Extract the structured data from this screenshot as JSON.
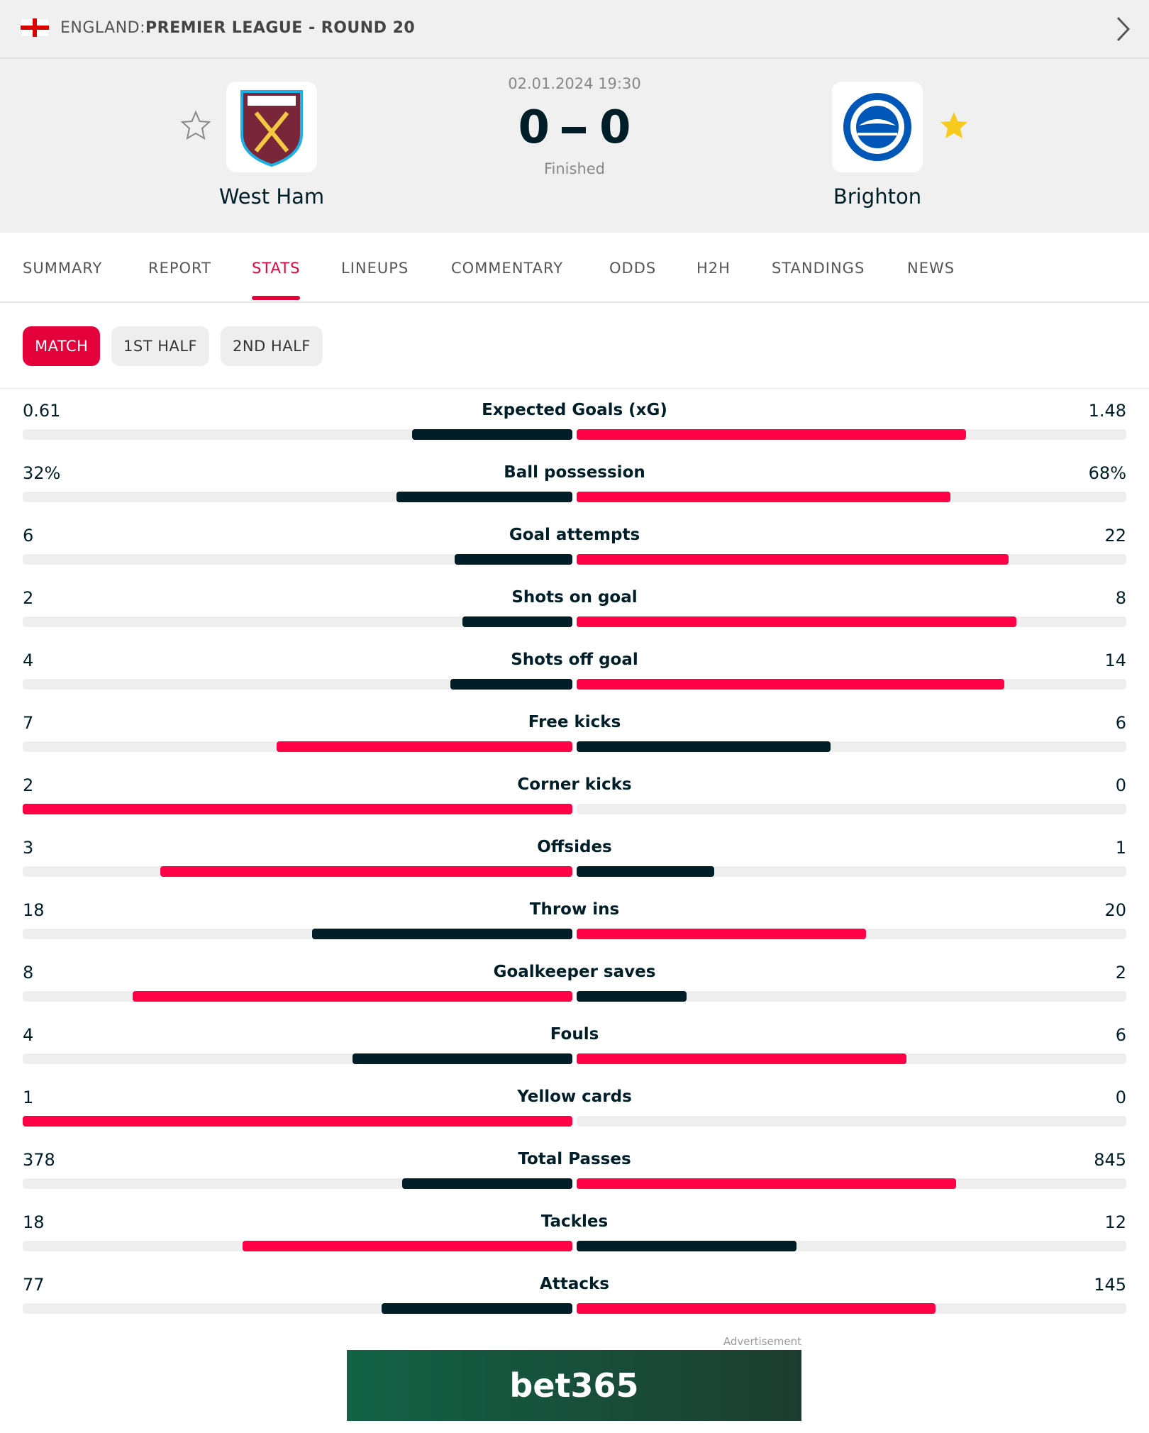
{
  "header": {
    "country": "ENGLAND:",
    "league": "PREMIER LEAGUE - ROUND 20"
  },
  "match": {
    "datetime": "02.01.2024 19:30",
    "home": "West Ham",
    "away": "Brighton",
    "score": {
      "home": 0,
      "away": 0
    },
    "status": "Finished"
  },
  "tabs": [
    "SUMMARY",
    "REPORT",
    "STATS",
    "LINEUPS",
    "COMMENTARY",
    "ODDS",
    "H2H",
    "STANDINGS",
    "NEWS"
  ],
  "periods": [
    "MATCH",
    "1ST HALF",
    "2ND HALF"
  ],
  "stats": [
    {
      "name": "Expected Goals (xG)",
      "home": 0.61,
      "away": 1.48
    },
    {
      "name": "Ball possession",
      "home": 32,
      "away": 68,
      "home_label": "32%",
      "away_label": "68%"
    },
    {
      "name": "Goal attempts",
      "home": 6,
      "away": 22
    },
    {
      "name": "Shots on goal",
      "home": 2,
      "away": 8
    },
    {
      "name": "Shots off goal",
      "home": 4,
      "away": 14
    },
    {
      "name": "Free kicks",
      "home": 7,
      "away": 6
    },
    {
      "name": "Corner kicks",
      "home": 2,
      "away": 0
    },
    {
      "name": "Offsides",
      "home": 3,
      "away": 1
    },
    {
      "name": "Throw ins",
      "home": 18,
      "away": 20
    },
    {
      "name": "Goalkeeper saves",
      "home": 8,
      "away": 2
    },
    {
      "name": "Fouls",
      "home": 4,
      "away": 6
    },
    {
      "name": "Yellow cards",
      "home": 1,
      "away": 0
    },
    {
      "name": "Total Passes",
      "home": 378,
      "away": 845
    },
    {
      "name": "Tackles",
      "home": 18,
      "away": 12
    },
    {
      "name": "Attacks",
      "home": 77,
      "away": 145
    }
  ],
  "ad": {
    "caption": "Advertisement",
    "brand": "bet365"
  }
}
